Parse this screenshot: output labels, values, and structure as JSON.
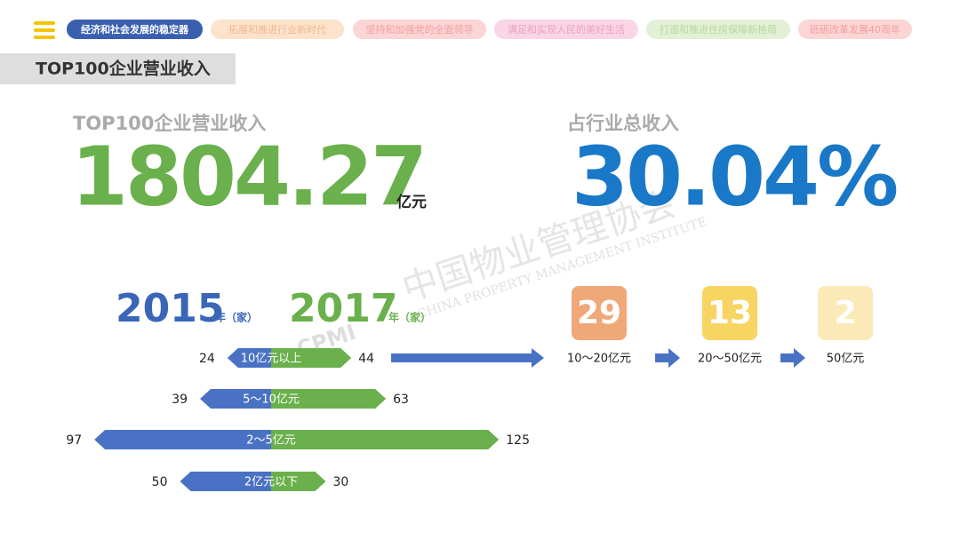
{
  "nav": {
    "tabs": [
      "经济和社会发展的稳定器",
      "拓展和推进行业新时代",
      "坚持和加强党的全面领导",
      "满足和实现人民的美好生活",
      "打造和推进住房保障新格局",
      "砥砺改革发展40周年"
    ]
  },
  "section_title": "TOP100企业营业收入",
  "revenue": {
    "label": "TOP100企业营业收入",
    "value": "1804.27",
    "unit": "亿元"
  },
  "share": {
    "label": "占行业总收入",
    "value": "30.04%"
  },
  "comparison": {
    "left_year": "2015",
    "left_suffix": "年（家）",
    "right_year": "2017",
    "right_suffix": "年（家）",
    "rows": [
      {
        "label": "10亿元以上",
        "left": 24,
        "right": 44
      },
      {
        "label": "5～10亿元",
        "left": 39,
        "right": 63
      },
      {
        "label": "2～5亿元",
        "left": 97,
        "right": 125
      },
      {
        "label": "2亿元以下",
        "left": 50,
        "right": 30
      }
    ]
  },
  "steps": [
    {
      "value": 29,
      "label": "10～20亿元"
    },
    {
      "value": 13,
      "label": "20～50亿元"
    },
    {
      "value": 2,
      "label": "50亿元"
    }
  ],
  "watermark": {
    "cn": "中国物业管理协会",
    "en": "CHINA PROPERTY MANAGEMENT INSTITUTE",
    "abbr": "CPMI"
  }
}
